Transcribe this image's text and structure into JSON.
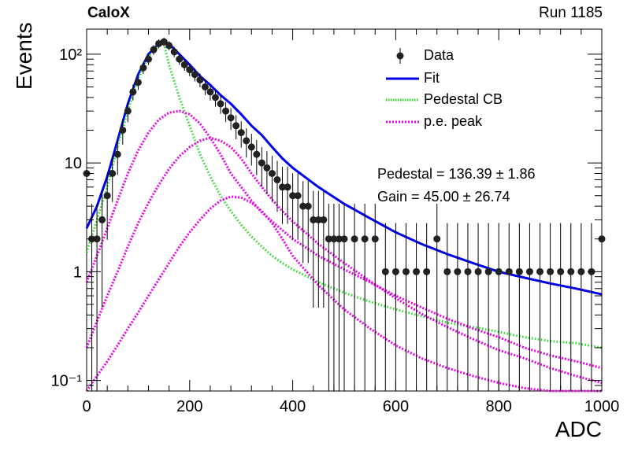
{
  "header": {
    "experiment": "CaloX",
    "run_label": "Run 1185"
  },
  "legend_items": [
    {
      "label": "Data",
      "style": "marker",
      "color": "#000000"
    },
    {
      "label": "Fit",
      "style": "solid",
      "color": "#0000ee"
    },
    {
      "label": "Pedestal CB",
      "style": "dotted",
      "color": "#22dd22"
    },
    {
      "label": "p.e. peak",
      "style": "dotted",
      "color": "#ee00ee"
    }
  ],
  "fit_results": {
    "pedestal_text": "Pedestal = 136.39 ± 1.86",
    "gain_text": "Gain = 45.00 ± 26.74"
  },
  "chart_data": {
    "type": "scatter",
    "xlabel": "ADC",
    "ylabel": "Events",
    "xlim": [
      0,
      1000
    ],
    "ylim": [
      0.08,
      170
    ],
    "y_scale": "log",
    "x_ticks": [
      0,
      200,
      400,
      600,
      800,
      1000
    ],
    "x_tick_labels": [
      "0",
      "200",
      "400",
      "600",
      "800",
      "1000"
    ],
    "y_ticks": [
      0.1,
      1,
      10,
      100
    ],
    "y_tick_labels": [
      "10⁻¹",
      "1",
      "10",
      "10²"
    ],
    "grid": false,
    "legend_position": "top-right",
    "series": [
      {
        "name": "Data",
        "kind": "points_with_errors",
        "color": "#000000",
        "x": [
          0,
          10,
          20,
          30,
          40,
          50,
          60,
          70,
          80,
          90,
          100,
          110,
          120,
          130,
          140,
          150,
          160,
          170,
          180,
          190,
          200,
          210,
          220,
          230,
          240,
          250,
          260,
          270,
          280,
          290,
          300,
          310,
          320,
          330,
          340,
          350,
          360,
          370,
          380,
          390,
          400,
          410,
          420,
          430,
          440,
          450,
          460,
          470,
          480,
          490,
          500,
          520,
          540,
          560,
          580,
          600,
          620,
          640,
          660,
          680,
          700,
          720,
          740,
          760,
          780,
          800,
          820,
          840,
          860,
          880,
          900,
          920,
          940,
          960,
          980,
          1000
        ],
        "y": [
          8,
          2,
          2,
          3,
          5,
          8,
          12,
          20,
          30,
          45,
          55,
          75,
          90,
          110,
          125,
          130,
          120,
          105,
          90,
          80,
          72,
          65,
          58,
          50,
          45,
          40,
          35,
          30,
          26,
          22,
          19,
          16,
          14,
          12,
          10,
          9,
          8,
          7,
          6,
          6,
          5,
          5,
          4,
          4,
          3,
          3,
          3,
          2,
          2,
          2,
          2,
          2,
          2,
          2,
          1,
          1,
          1,
          1,
          1,
          2,
          1,
          1,
          1,
          1,
          1,
          1,
          1,
          1,
          1,
          1,
          1,
          1,
          1,
          1,
          1,
          2
        ]
      },
      {
        "name": "Fit",
        "kind": "line",
        "color": "#0000ee",
        "x": [
          0,
          20,
          40,
          60,
          80,
          100,
          120,
          140,
          150,
          160,
          180,
          200,
          220,
          240,
          260,
          280,
          300,
          320,
          340,
          360,
          380,
          400,
          450,
          500,
          550,
          600,
          650,
          700,
          750,
          800,
          850,
          900,
          950,
          1000
        ],
        "y": [
          2.5,
          4,
          7.5,
          16,
          35,
          65,
          100,
          125,
          130,
          125,
          100,
          80,
          63,
          52,
          42,
          35,
          28,
          22,
          18,
          14,
          11,
          9,
          6,
          4.2,
          3.1,
          2.3,
          1.8,
          1.45,
          1.2,
          1.0,
          0.88,
          0.78,
          0.7,
          0.62
        ]
      },
      {
        "name": "Pedestal CB",
        "kind": "line",
        "color": "#22dd22",
        "x": [
          0,
          20,
          40,
          60,
          80,
          100,
          120,
          140,
          150,
          160,
          180,
          200,
          220,
          240,
          260,
          280,
          300,
          320,
          340,
          360,
          380,
          400,
          450,
          500,
          550,
          600,
          650,
          700,
          750,
          800,
          850,
          900,
          950,
          1000
        ],
        "y": [
          1.5,
          3,
          6,
          14,
          30,
          60,
          95,
          120,
          125,
          80,
          40,
          22,
          12,
          7.5,
          5,
          3.6,
          2.7,
          2.1,
          1.7,
          1.4,
          1.2,
          1.05,
          0.8,
          0.64,
          0.53,
          0.45,
          0.39,
          0.34,
          0.31,
          0.28,
          0.25,
          0.23,
          0.22,
          0.2
        ]
      },
      {
        "name": "p.e. peak",
        "kind": "line",
        "color": "#ee00ee",
        "x": [
          0,
          20,
          40,
          60,
          80,
          100,
          120,
          140,
          160,
          180,
          200,
          220,
          240,
          260,
          280,
          300,
          320,
          340,
          360,
          380,
          400,
          450,
          500,
          550,
          600,
          650,
          700,
          750,
          800,
          850,
          900,
          950,
          1000
        ],
        "y": [
          0.8,
          1.4,
          2.5,
          4.5,
          8,
          13,
          19,
          25,
          29,
          30,
          28,
          23,
          17,
          12,
          8,
          6,
          4.5,
          3.5,
          2.9,
          2.4,
          2.0,
          1.4,
          1.05,
          0.8,
          0.6,
          0.47,
          0.37,
          0.3,
          0.25,
          0.2,
          0.17,
          0.15,
          0.13
        ]
      },
      {
        "name": "p.e. peak",
        "kind": "line",
        "color": "#ee00ee",
        "x": [
          0,
          20,
          40,
          60,
          80,
          100,
          120,
          140,
          160,
          180,
          200,
          220,
          240,
          260,
          280,
          300,
          320,
          340,
          360,
          380,
          400,
          450,
          500,
          550,
          600,
          650,
          700,
          750,
          800,
          850,
          900,
          950,
          1000
        ],
        "y": [
          0.2,
          0.35,
          0.6,
          1.0,
          1.7,
          2.8,
          4.3,
          6.3,
          8.8,
          11.5,
          14,
          16,
          17,
          16,
          14,
          11,
          8,
          6,
          4.6,
          3.6,
          2.9,
          1.8,
          1.2,
          0.82,
          0.57,
          0.41,
          0.31,
          0.24,
          0.19,
          0.16,
          0.13,
          0.11,
          0.095
        ]
      },
      {
        "name": "p.e. peak",
        "kind": "line",
        "color": "#ee00ee",
        "x": [
          0,
          20,
          40,
          60,
          80,
          100,
          120,
          140,
          160,
          180,
          200,
          220,
          240,
          260,
          280,
          300,
          320,
          340,
          360,
          380,
          400,
          450,
          500,
          550,
          600,
          650,
          700,
          750,
          800,
          850,
          900,
          950,
          1000
        ],
        "y": [
          0.08,
          0.11,
          0.15,
          0.21,
          0.3,
          0.42,
          0.6,
          0.85,
          1.2,
          1.7,
          2.3,
          3.0,
          3.8,
          4.5,
          4.9,
          4.8,
          4.3,
          3.6,
          2.8,
          2.0,
          1.4,
          0.75,
          0.45,
          0.3,
          0.21,
          0.16,
          0.13,
          0.11,
          0.095,
          0.085,
          0.08,
          0.075,
          0.07
        ]
      }
    ]
  }
}
